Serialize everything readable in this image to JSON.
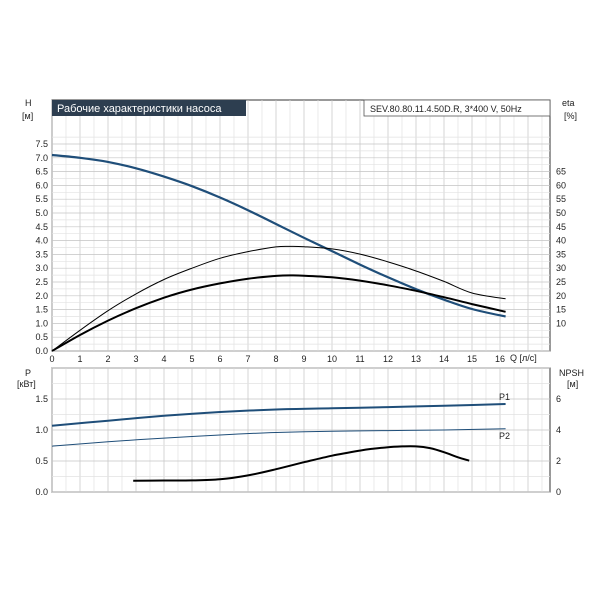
{
  "chart_data": [
    {
      "type": "line",
      "title": "Рабочие характеристики насоса",
      "subtitle": "SEV.80.80.11.4.50D.R, 3*400 V, 50Hz",
      "xlabel": "Q [л/с]",
      "ylabel": "H [м]",
      "y2label": "eta [%]",
      "xlim": [
        0,
        17.6
      ],
      "ylim": [
        0,
        7.75
      ],
      "y2lim": [
        0,
        77.5
      ],
      "grid": true,
      "xticks": [
        0,
        1,
        2,
        3,
        4,
        5,
        6,
        7,
        8,
        9,
        10,
        11,
        12,
        13,
        14,
        15,
        16
      ],
      "yticks": [
        0.0,
        0.5,
        1.0,
        1.5,
        2.0,
        2.5,
        3.0,
        3.5,
        4.0,
        4.5,
        5.0,
        5.5,
        6.0,
        6.5,
        7.0,
        7.5
      ],
      "y2ticks": [
        10,
        15,
        20,
        25,
        30,
        35,
        40,
        45,
        50,
        55,
        60,
        65
      ],
      "series": [
        {
          "axis": "left",
          "color": "#1f4e79",
          "x": [
            0,
            1,
            2,
            3,
            4,
            5,
            6,
            7,
            8,
            9,
            10,
            11,
            12,
            13,
            14,
            15,
            16.2
          ],
          "values": [
            7.1,
            7.0,
            6.85,
            6.62,
            6.32,
            5.97,
            5.56,
            5.1,
            4.6,
            4.1,
            3.62,
            3.13,
            2.67,
            2.24,
            1.86,
            1.52,
            1.25
          ]
        },
        {
          "axis": "right",
          "color": "#000000",
          "x": [
            0,
            1,
            2,
            3,
            4,
            5,
            6,
            7,
            8,
            8.5,
            9,
            10,
            11,
            12,
            13,
            14,
            15,
            16.2
          ],
          "values": [
            0,
            7.5,
            14.6,
            20.7,
            25.9,
            30.0,
            33.6,
            36.0,
            37.7,
            37.9,
            37.8,
            37.0,
            35.1,
            32.3,
            29.0,
            25.2,
            21.0,
            18.9
          ]
        },
        {
          "axis": "left",
          "color": "#000000",
          "x": [
            0,
            1,
            2,
            3,
            4,
            5,
            6,
            7,
            8,
            8.5,
            9,
            10,
            11,
            12,
            13,
            14,
            15,
            16.2
          ],
          "values": [
            0,
            0.58,
            1.1,
            1.55,
            1.93,
            2.23,
            2.45,
            2.62,
            2.72,
            2.74,
            2.73,
            2.67,
            2.55,
            2.38,
            2.18,
            1.95,
            1.7,
            1.42
          ]
        }
      ]
    },
    {
      "type": "line",
      "xlabel": "",
      "ylabel": "P [кВт]",
      "y2label": "NPSH [м]",
      "xlim": [
        0,
        17.6
      ],
      "ylim": [
        0,
        2.0
      ],
      "y2lim": [
        0,
        8.0
      ],
      "grid": true,
      "yticks": [
        0.0,
        0.5,
        1.0,
        1.5
      ],
      "y2ticks": [
        0,
        2,
        4,
        6
      ],
      "series": [
        {
          "name": "P1",
          "axis": "left",
          "color": "#1f4e79",
          "x": [
            0,
            2,
            4,
            6,
            8,
            10,
            12,
            14,
            16.2
          ],
          "values": [
            1.07,
            1.15,
            1.23,
            1.29,
            1.33,
            1.35,
            1.37,
            1.39,
            1.42
          ]
        },
        {
          "name": "P2",
          "axis": "left",
          "color": "#1f4e79",
          "x": [
            0,
            2,
            4,
            6,
            8,
            10,
            12,
            14,
            16.2
          ],
          "values": [
            0.74,
            0.81,
            0.87,
            0.92,
            0.96,
            0.98,
            0.99,
            1.0,
            1.02
          ]
        },
        {
          "axis": "right",
          "color": "#000000",
          "x": [
            2.9,
            4,
            5,
            6,
            7,
            8,
            9,
            10,
            11,
            11.5,
            12,
            12.5,
            13,
            13.5,
            14,
            14.5,
            14.9
          ],
          "values": [
            0.72,
            0.74,
            0.75,
            0.82,
            1.07,
            1.47,
            1.92,
            2.34,
            2.67,
            2.8,
            2.89,
            2.94,
            2.94,
            2.83,
            2.57,
            2.24,
            2.02
          ]
        }
      ]
    }
  ]
}
